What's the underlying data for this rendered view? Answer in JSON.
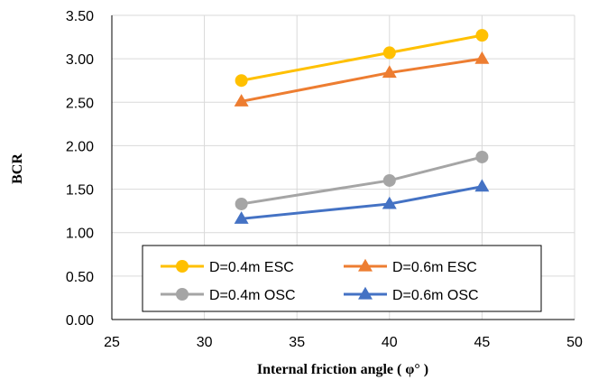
{
  "chart_data": {
    "type": "line",
    "title": "",
    "xlabel": "Internal friction angle ( φ° )",
    "ylabel": "BCR",
    "xlim": [
      25,
      50
    ],
    "ylim": [
      0,
      3.5
    ],
    "x_ticks": [
      "25",
      "30",
      "35",
      "40",
      "45",
      "50"
    ],
    "y_ticks": [
      "0.00",
      "0.50",
      "1.00",
      "1.50",
      "2.00",
      "2.50",
      "3.00",
      "3.50"
    ],
    "grid": true,
    "legend_placement": "bottom-center",
    "series": [
      {
        "name": "D=0.4m ESC",
        "marker": "circle",
        "color": "#FFC000",
        "x": [
          32,
          40,
          45
        ],
        "y": [
          2.75,
          3.07,
          3.27
        ]
      },
      {
        "name": "D=0.6m ESC",
        "marker": "triangle",
        "color": "#ED7D31",
        "x": [
          32,
          40,
          45
        ],
        "y": [
          2.51,
          2.84,
          3.0
        ]
      },
      {
        "name": "D=0.4m OSC",
        "marker": "circle",
        "color": "#A5A5A5",
        "x": [
          32,
          40,
          45
        ],
        "y": [
          1.33,
          1.6,
          1.87
        ]
      },
      {
        "name": "D=0.6m OSC",
        "marker": "triangle",
        "color": "#4472C4",
        "x": [
          32,
          40,
          45
        ],
        "y": [
          1.16,
          1.33,
          1.53
        ]
      }
    ]
  }
}
